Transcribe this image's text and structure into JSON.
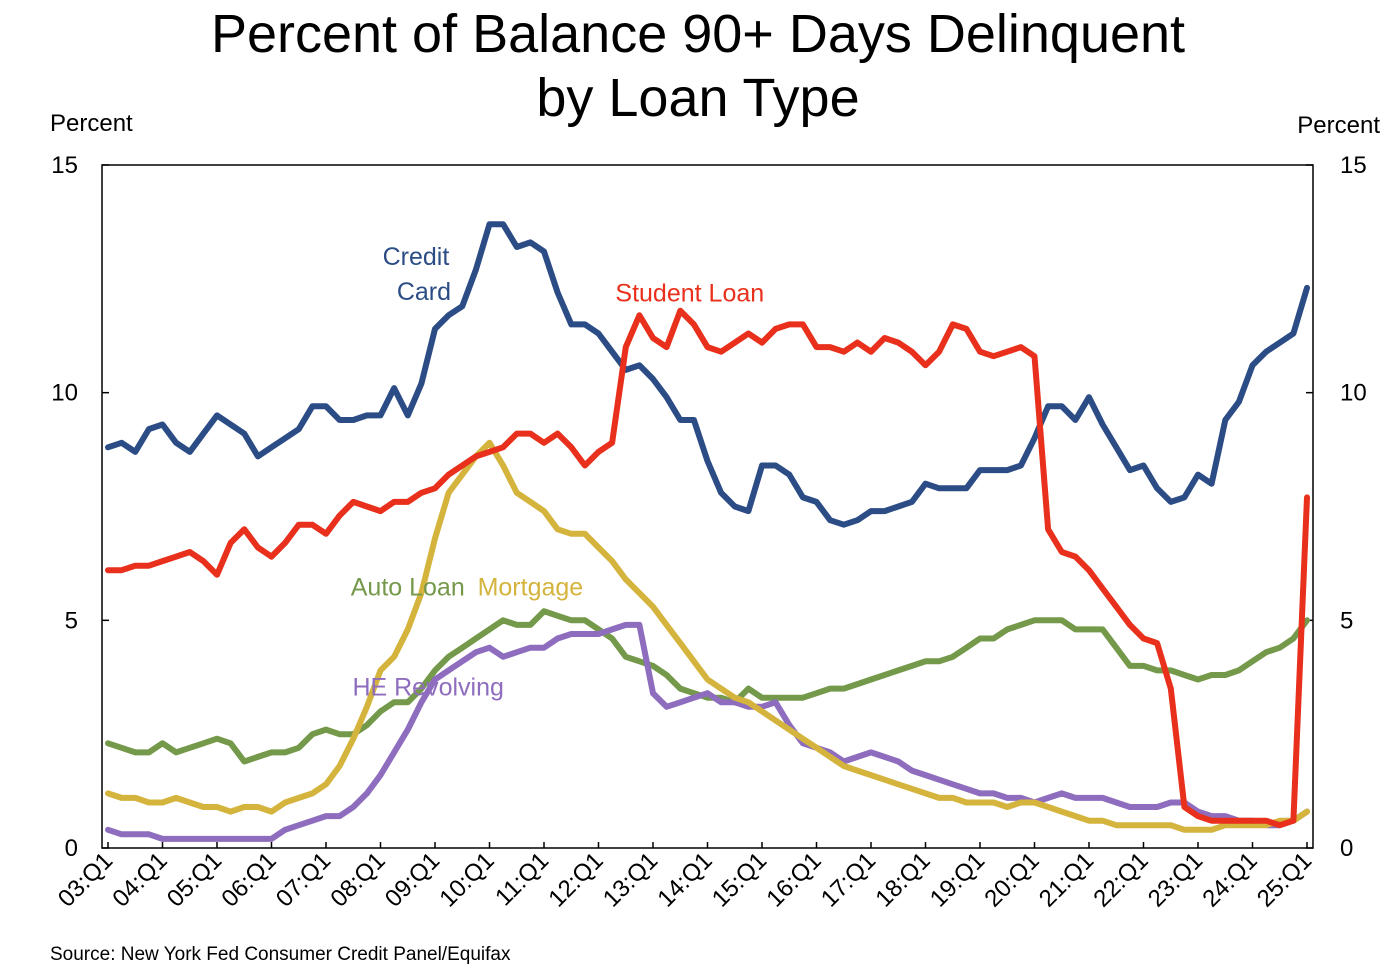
{
  "title_lines": [
    "Percent of Balance 90+ Days Delinquent",
    "by Loan Type"
  ],
  "left_unit": "Percent",
  "right_unit": "Percent",
  "source": "Source: New York Fed Consumer Credit Panel/Equifax",
  "chart_data": {
    "type": "line",
    "title": "Percent of Balance 90+ Days Delinquent by Loan Type",
    "ylabel": "Percent",
    "ylim": [
      0,
      15
    ],
    "yticks": [
      0,
      5,
      10,
      15
    ],
    "x_start": "2003:Q1",
    "x_end": "2025:Q1",
    "x_ticks": [
      "03:Q1",
      "04:Q1",
      "05:Q1",
      "06:Q1",
      "07:Q1",
      "08:Q1",
      "09:Q1",
      "10:Q1",
      "11:Q1",
      "12:Q1",
      "13:Q1",
      "14:Q1",
      "15:Q1",
      "16:Q1",
      "17:Q1",
      "18:Q1",
      "19:Q1",
      "20:Q1",
      "21:Q1",
      "22:Q1",
      "23:Q1",
      "24:Q1",
      "25:Q1"
    ],
    "grid": false,
    "series": [
      {
        "name": "Credit Card",
        "label": [
          "Credit",
          "Card"
        ],
        "color": "#2B4C85",
        "values": [
          8.8,
          8.9,
          8.7,
          9.2,
          9.3,
          8.9,
          8.7,
          9.1,
          9.5,
          9.3,
          9.1,
          8.6,
          8.8,
          9.0,
          9.2,
          9.7,
          9.7,
          9.4,
          9.4,
          9.5,
          9.5,
          10.1,
          9.5,
          10.2,
          11.4,
          11.7,
          11.9,
          12.7,
          13.7,
          13.7,
          13.2,
          13.3,
          13.1,
          12.2,
          11.5,
          11.5,
          11.3,
          10.9,
          10.5,
          10.6,
          10.3,
          9.9,
          9.4,
          9.4,
          8.5,
          7.8,
          7.5,
          7.4,
          8.4,
          8.4,
          8.2,
          7.7,
          7.6,
          7.2,
          7.1,
          7.2,
          7.4,
          7.4,
          7.5,
          7.6,
          8.0,
          7.9,
          7.9,
          7.9,
          8.3,
          8.3,
          8.3,
          8.4,
          9.0,
          9.7,
          9.7,
          9.4,
          9.9,
          9.3,
          8.8,
          8.3,
          8.4,
          7.9,
          7.6,
          7.7,
          8.2,
          8.0,
          9.4,
          9.8,
          10.6,
          10.9,
          11.1,
          11.3,
          12.3
        ]
      },
      {
        "name": "Student Loan",
        "label": [
          "Student Loan"
        ],
        "color": "#E8301C",
        "values": [
          6.1,
          6.1,
          6.2,
          6.2,
          6.3,
          6.4,
          6.5,
          6.3,
          6.0,
          6.7,
          7.0,
          6.6,
          6.4,
          6.7,
          7.1,
          7.1,
          6.9,
          7.3,
          7.6,
          7.5,
          7.4,
          7.6,
          7.6,
          7.8,
          7.9,
          8.2,
          8.4,
          8.6,
          8.7,
          8.8,
          9.1,
          9.1,
          8.9,
          9.1,
          8.8,
          8.4,
          8.7,
          8.9,
          11.0,
          11.7,
          11.2,
          11.0,
          11.8,
          11.5,
          11.0,
          10.9,
          11.1,
          11.3,
          11.1,
          11.4,
          11.5,
          11.5,
          11.0,
          11.0,
          10.9,
          11.1,
          10.9,
          11.2,
          11.1,
          10.9,
          10.6,
          10.9,
          11.5,
          11.4,
          10.9,
          10.8,
          10.9,
          11.0,
          10.8,
          7.0,
          6.5,
          6.4,
          6.1,
          5.7,
          5.3,
          4.9,
          4.6,
          4.5,
          3.5,
          0.9,
          0.7,
          0.6,
          0.6,
          0.6,
          0.6,
          0.6,
          0.5,
          0.6,
          7.7
        ]
      },
      {
        "name": "Auto Loan",
        "label": [
          "Auto Loan"
        ],
        "color": "#74994A",
        "values": [
          2.3,
          2.2,
          2.1,
          2.1,
          2.3,
          2.1,
          2.2,
          2.3,
          2.4,
          2.3,
          1.9,
          2.0,
          2.1,
          2.1,
          2.2,
          2.5,
          2.6,
          2.5,
          2.5,
          2.7,
          3.0,
          3.2,
          3.2,
          3.5,
          3.9,
          4.2,
          4.4,
          4.6,
          4.8,
          5.0,
          4.9,
          4.9,
          5.2,
          5.1,
          5.0,
          5.0,
          4.8,
          4.6,
          4.2,
          4.1,
          4.0,
          3.8,
          3.5,
          3.4,
          3.3,
          3.3,
          3.2,
          3.5,
          3.3,
          3.3,
          3.3,
          3.3,
          3.4,
          3.5,
          3.5,
          3.6,
          3.7,
          3.8,
          3.9,
          4.0,
          4.1,
          4.1,
          4.2,
          4.4,
          4.6,
          4.6,
          4.8,
          4.9,
          5.0,
          5.0,
          5.0,
          4.8,
          4.8,
          4.8,
          4.4,
          4.0,
          4.0,
          3.9,
          3.9,
          3.8,
          3.7,
          3.8,
          3.8,
          3.9,
          4.1,
          4.3,
          4.4,
          4.6,
          5.0
        ]
      },
      {
        "name": "Mortgage",
        "label": [
          "Mortgage"
        ],
        "color": "#D4B43C",
        "values": [
          1.2,
          1.1,
          1.1,
          1.0,
          1.0,
          1.1,
          1.0,
          0.9,
          0.9,
          0.8,
          0.9,
          0.9,
          0.8,
          1.0,
          1.1,
          1.2,
          1.4,
          1.8,
          2.4,
          3.1,
          3.9,
          4.2,
          4.8,
          5.6,
          6.8,
          7.8,
          8.2,
          8.6,
          8.9,
          8.4,
          7.8,
          7.6,
          7.4,
          7.0,
          6.9,
          6.9,
          6.6,
          6.3,
          5.9,
          5.6,
          5.3,
          4.9,
          4.5,
          4.1,
          3.7,
          3.5,
          3.3,
          3.2,
          3.0,
          2.8,
          2.6,
          2.4,
          2.2,
          2.0,
          1.8,
          1.7,
          1.6,
          1.5,
          1.4,
          1.3,
          1.2,
          1.1,
          1.1,
          1.0,
          1.0,
          1.0,
          0.9,
          1.0,
          1.0,
          0.9,
          0.8,
          0.7,
          0.6,
          0.6,
          0.5,
          0.5,
          0.5,
          0.5,
          0.5,
          0.4,
          0.4,
          0.4,
          0.5,
          0.5,
          0.5,
          0.5,
          0.6,
          0.6,
          0.8
        ]
      },
      {
        "name": "HE Revolving",
        "label": [
          "HE Revolving"
        ],
        "color": "#8E6DBE",
        "values": [
          0.4,
          0.3,
          0.3,
          0.3,
          0.2,
          0.2,
          0.2,
          0.2,
          0.2,
          0.2,
          0.2,
          0.2,
          0.2,
          0.4,
          0.5,
          0.6,
          0.7,
          0.7,
          0.9,
          1.2,
          1.6,
          2.1,
          2.6,
          3.2,
          3.7,
          3.9,
          4.1,
          4.3,
          4.4,
          4.2,
          4.3,
          4.4,
          4.4,
          4.6,
          4.7,
          4.7,
          4.7,
          4.8,
          4.9,
          4.9,
          3.4,
          3.1,
          3.2,
          3.3,
          3.4,
          3.2,
          3.2,
          3.1,
          3.1,
          3.2,
          2.7,
          2.3,
          2.2,
          2.1,
          1.9,
          2.0,
          2.1,
          2.0,
          1.9,
          1.7,
          1.6,
          1.5,
          1.4,
          1.3,
          1.2,
          1.2,
          1.1,
          1.1,
          1.0,
          1.1,
          1.2,
          1.1,
          1.1,
          1.1,
          1.0,
          0.9,
          0.9,
          0.9,
          1.0,
          1.0,
          0.8,
          0.7,
          0.7,
          0.6,
          0.6,
          0.5,
          0.5,
          0.6,
          0.8
        ]
      }
    ]
  }
}
